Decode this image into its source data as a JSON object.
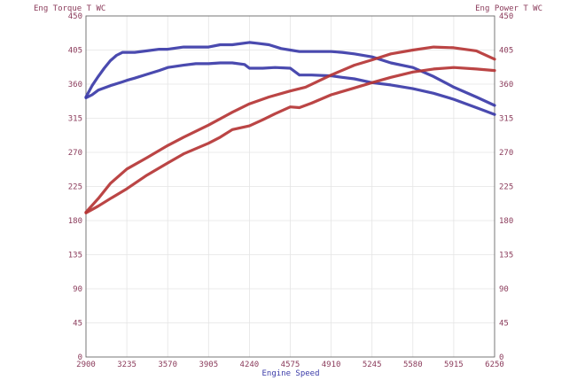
{
  "chart_data": {
    "type": "line",
    "xlabel": "Engine Speed",
    "ylabel_left": "Eng Torque T WC",
    "ylabel_right": "Eng Power T WC",
    "xlim": [
      2900,
      6250
    ],
    "ylim": [
      0,
      450
    ],
    "x_ticks": [
      "2900",
      "3235",
      "3570",
      "3905",
      "4240",
      "4575",
      "4910",
      "5245",
      "5580",
      "5915",
      "6250"
    ],
    "y_ticks": [
      "0",
      "45",
      "90",
      "135",
      "180",
      "225",
      "270",
      "315",
      "360",
      "405",
      "450"
    ],
    "grid": true,
    "colors": {
      "torque": "#3b3ba8",
      "power": "#b53535",
      "axis_text": "#8a3a5a",
      "grid": "#e4e4e4"
    },
    "series": [
      {
        "kind": "torque",
        "run": "a",
        "x": [
          2900,
          2950,
          3000,
          3050,
          3100,
          3150,
          3200,
          3235,
          3300,
          3400,
          3500,
          3570,
          3700,
          3800,
          3905,
          4000,
          4100,
          4240,
          4300,
          4400,
          4500,
          4575,
          4650,
          4750,
          4910,
          5000,
          5100,
          5245,
          5400,
          5580,
          5750,
          5915,
          6100,
          6250
        ],
        "y": [
          343,
          358,
          370,
          381,
          391,
          398,
          402,
          402,
          402,
          404,
          406,
          406,
          409,
          409,
          409,
          412,
          412,
          415,
          414,
          412,
          407,
          405,
          403,
          403,
          403,
          402,
          400,
          396,
          388,
          382,
          370,
          356,
          343,
          332
        ]
      },
      {
        "kind": "torque",
        "run": "b",
        "x": [
          2900,
          2950,
          3000,
          3100,
          3200,
          3235,
          3300,
          3400,
          3500,
          3570,
          3700,
          3800,
          3905,
          4000,
          4100,
          4200,
          4240,
          4350,
          4450,
          4575,
          4650,
          4750,
          4910,
          5000,
          5100,
          5245,
          5400,
          5580,
          5750,
          5915,
          6100,
          6250
        ],
        "y": [
          342,
          346,
          352,
          358,
          363,
          365,
          368,
          373,
          378,
          382,
          385,
          387,
          387,
          388,
          388,
          386,
          381,
          381,
          382,
          381,
          372,
          372,
          371,
          369,
          367,
          362,
          359,
          354,
          348,
          340,
          329,
          320
        ]
      },
      {
        "kind": "power",
        "run": "a",
        "x": [
          2900,
          3000,
          3100,
          3235,
          3400,
          3570,
          3700,
          3905,
          4100,
          4240,
          4400,
          4575,
          4700,
          4910,
          5100,
          5245,
          5400,
          5580,
          5750,
          5915,
          6100,
          6250
        ],
        "y": [
          191,
          209,
          229,
          248,
          263,
          279,
          290,
          306,
          323,
          334,
          343,
          351,
          356,
          372,
          385,
          392,
          400,
          405,
          409,
          408,
          404,
          393
        ]
      },
      {
        "kind": "power",
        "run": "b",
        "x": [
          2900,
          3000,
          3100,
          3235,
          3400,
          3570,
          3700,
          3905,
          4000,
          4100,
          4240,
          4350,
          4450,
          4575,
          4650,
          4750,
          4910,
          5100,
          5245,
          5400,
          5580,
          5750,
          5915,
          6100,
          6250
        ],
        "y": [
          190,
          199,
          209,
          222,
          240,
          256,
          268,
          282,
          290,
          300,
          305,
          313,
          321,
          330,
          329,
          335,
          346,
          355,
          362,
          369,
          376,
          380,
          382,
          380,
          378
        ]
      }
    ]
  }
}
